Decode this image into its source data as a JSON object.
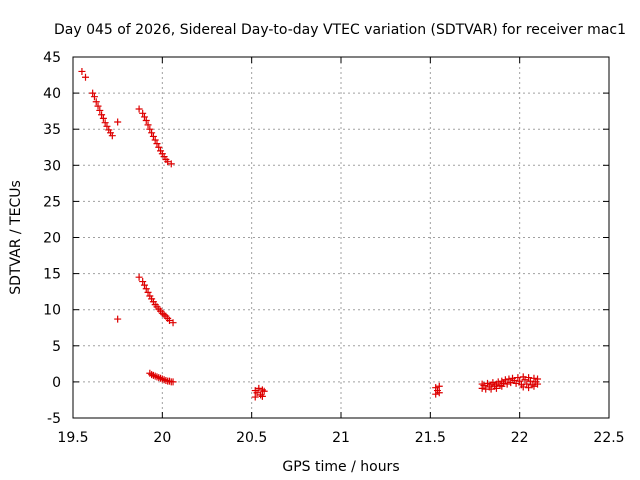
{
  "chart_data": {
    "type": "scatter",
    "title": "Day 045 of 2026, Sidereal Day-to-day VTEC variation (SDTVAR) for receiver mac1",
    "xlabel": "GPS time / hours",
    "ylabel": "SDTVAR / TECUs",
    "xlim": [
      19.5,
      22.5
    ],
    "ylim": [
      -5,
      45
    ],
    "grid": true,
    "marker": "+",
    "color": "#dd0000",
    "x_ticks": [
      "19.5",
      "20",
      "20.5",
      "21",
      "21.5",
      "22",
      "22.5"
    ],
    "x_tick_values": [
      19.5,
      20,
      20.5,
      21,
      21.5,
      22,
      22.5
    ],
    "y_ticks": [
      "-5",
      "0",
      "5",
      "10",
      "15",
      "20",
      "25",
      "30",
      "35",
      "40",
      "45"
    ],
    "y_tick_values": [
      -5,
      0,
      5,
      10,
      15,
      20,
      25,
      30,
      35,
      40,
      45
    ],
    "series": [
      {
        "name": "SDTVAR",
        "points": [
          [
            19.55,
            43.0
          ],
          [
            19.57,
            42.2
          ],
          [
            19.61,
            40.0
          ],
          [
            19.62,
            39.5
          ],
          [
            19.63,
            38.8
          ],
          [
            19.64,
            38.2
          ],
          [
            19.65,
            37.6
          ],
          [
            19.66,
            37.0
          ],
          [
            19.67,
            36.5
          ],
          [
            19.68,
            35.9
          ],
          [
            19.69,
            35.4
          ],
          [
            19.7,
            34.9
          ],
          [
            19.71,
            34.5
          ],
          [
            19.72,
            34.1
          ],
          [
            19.75,
            36.0
          ],
          [
            19.75,
            8.7
          ],
          [
            19.87,
            37.8
          ],
          [
            19.89,
            37.2
          ],
          [
            19.9,
            36.7
          ],
          [
            19.91,
            36.2
          ],
          [
            19.92,
            35.6
          ],
          [
            19.93,
            35.0
          ],
          [
            19.94,
            34.5
          ],
          [
            19.95,
            34.0
          ],
          [
            19.96,
            33.5
          ],
          [
            19.97,
            33.0
          ],
          [
            19.98,
            32.5
          ],
          [
            19.99,
            32.0
          ],
          [
            20.0,
            31.6
          ],
          [
            20.01,
            31.2
          ],
          [
            20.02,
            30.8
          ],
          [
            20.03,
            30.5
          ],
          [
            20.05,
            30.2
          ],
          [
            19.87,
            14.5
          ],
          [
            19.89,
            13.9
          ],
          [
            19.9,
            13.4
          ],
          [
            19.91,
            12.9
          ],
          [
            19.92,
            12.4
          ],
          [
            19.93,
            11.9
          ],
          [
            19.94,
            11.5
          ],
          [
            19.95,
            11.1
          ],
          [
            19.96,
            10.7
          ],
          [
            19.97,
            10.4
          ],
          [
            19.98,
            10.1
          ],
          [
            19.99,
            9.8
          ],
          [
            20.0,
            9.5
          ],
          [
            20.01,
            9.3
          ],
          [
            20.02,
            9.1
          ],
          [
            20.03,
            8.8
          ],
          [
            20.04,
            8.5
          ],
          [
            20.06,
            8.2
          ],
          [
            19.93,
            1.2
          ],
          [
            19.94,
            1.0
          ],
          [
            19.95,
            0.9
          ],
          [
            19.96,
            0.8
          ],
          [
            19.97,
            0.7
          ],
          [
            19.98,
            0.6
          ],
          [
            19.99,
            0.5
          ],
          [
            20.0,
            0.4
          ],
          [
            20.01,
            0.3
          ],
          [
            20.02,
            0.2
          ],
          [
            20.03,
            0.1
          ],
          [
            20.04,
            0.1
          ],
          [
            20.05,
            0.0
          ],
          [
            20.06,
            0.0
          ],
          [
            20.52,
            -1.2
          ],
          [
            20.52,
            -2.1
          ],
          [
            20.53,
            -1.5
          ],
          [
            20.54,
            -0.9
          ],
          [
            20.55,
            -1.8
          ],
          [
            20.56,
            -1.1
          ],
          [
            20.56,
            -2.0
          ],
          [
            20.57,
            -1.3
          ],
          [
            21.53,
            -0.8
          ],
          [
            21.53,
            -1.7
          ],
          [
            21.54,
            -1.2
          ],
          [
            21.55,
            -0.6
          ],
          [
            21.55,
            -1.5
          ],
          [
            21.79,
            -0.3
          ],
          [
            21.79,
            -0.9
          ],
          [
            21.8,
            -0.5
          ],
          [
            21.81,
            -1.0
          ],
          [
            21.82,
            -0.2
          ],
          [
            21.83,
            -0.7
          ],
          [
            21.84,
            -0.4
          ],
          [
            21.84,
            -1.0
          ],
          [
            21.85,
            -0.1
          ],
          [
            21.86,
            -0.6
          ],
          [
            21.87,
            -0.3
          ],
          [
            21.87,
            -0.9
          ],
          [
            21.88,
            0.0
          ],
          [
            21.89,
            -0.5
          ],
          [
            21.9,
            0.1
          ],
          [
            21.9,
            -0.6
          ],
          [
            21.91,
            -0.2
          ],
          [
            21.92,
            0.3
          ],
          [
            21.93,
            -0.3
          ],
          [
            21.94,
            0.4
          ],
          [
            21.95,
            -0.1
          ],
          [
            21.96,
            0.5
          ],
          [
            21.97,
            0.2
          ],
          [
            21.98,
            -0.2
          ],
          [
            21.99,
            0.6
          ],
          [
            22.0,
            0.1
          ],
          [
            22.01,
            -0.4
          ],
          [
            22.02,
            0.7
          ],
          [
            22.02,
            -0.7
          ],
          [
            22.03,
            0.3
          ],
          [
            22.04,
            -0.3
          ],
          [
            22.05,
            0.6
          ],
          [
            22.05,
            -0.8
          ],
          [
            22.06,
            0.1
          ],
          [
            22.07,
            -0.4
          ],
          [
            22.08,
            0.5
          ],
          [
            22.08,
            -0.6
          ],
          [
            22.09,
            0.0
          ],
          [
            22.1,
            -0.3
          ],
          [
            22.1,
            0.4
          ]
        ]
      }
    ]
  }
}
